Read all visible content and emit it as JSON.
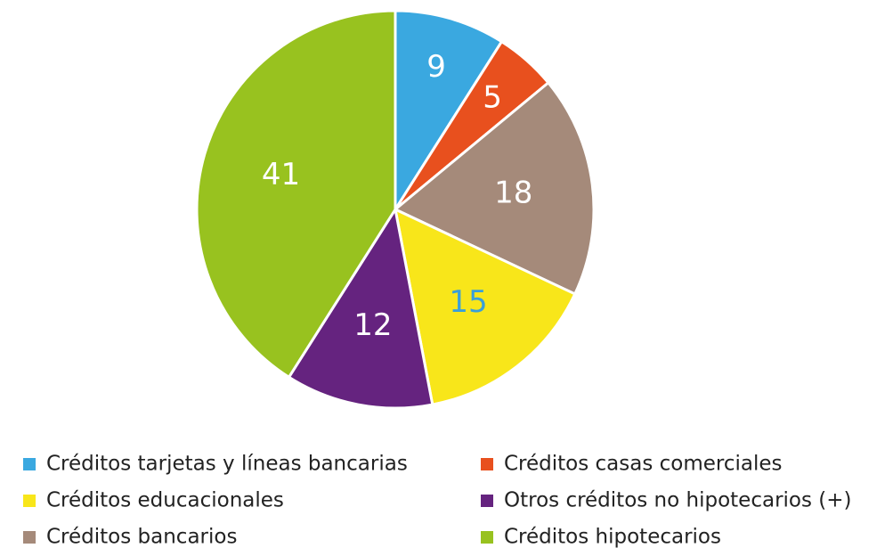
{
  "chart_data": {
    "type": "pie",
    "categories": [
      "Créditos tarjetas y líneas bancarias",
      "Créditos casas comerciales",
      "Créditos bancarios",
      "Créditos educacionales",
      "Otros créditos no hipotecarios (+)",
      "Créditos hipotecarios"
    ],
    "values": [
      9,
      5,
      18,
      15,
      12,
      41
    ],
    "colors": [
      "#3aa8e0",
      "#e8501e",
      "#a58a7a",
      "#f8e61a",
      "#65237f",
      "#98c21f"
    ],
    "label_colors": [
      "#ffffff",
      "#ffffff",
      "#ffffff",
      "#3a9fd8",
      "#ffffff",
      "#ffffff"
    ]
  }
}
